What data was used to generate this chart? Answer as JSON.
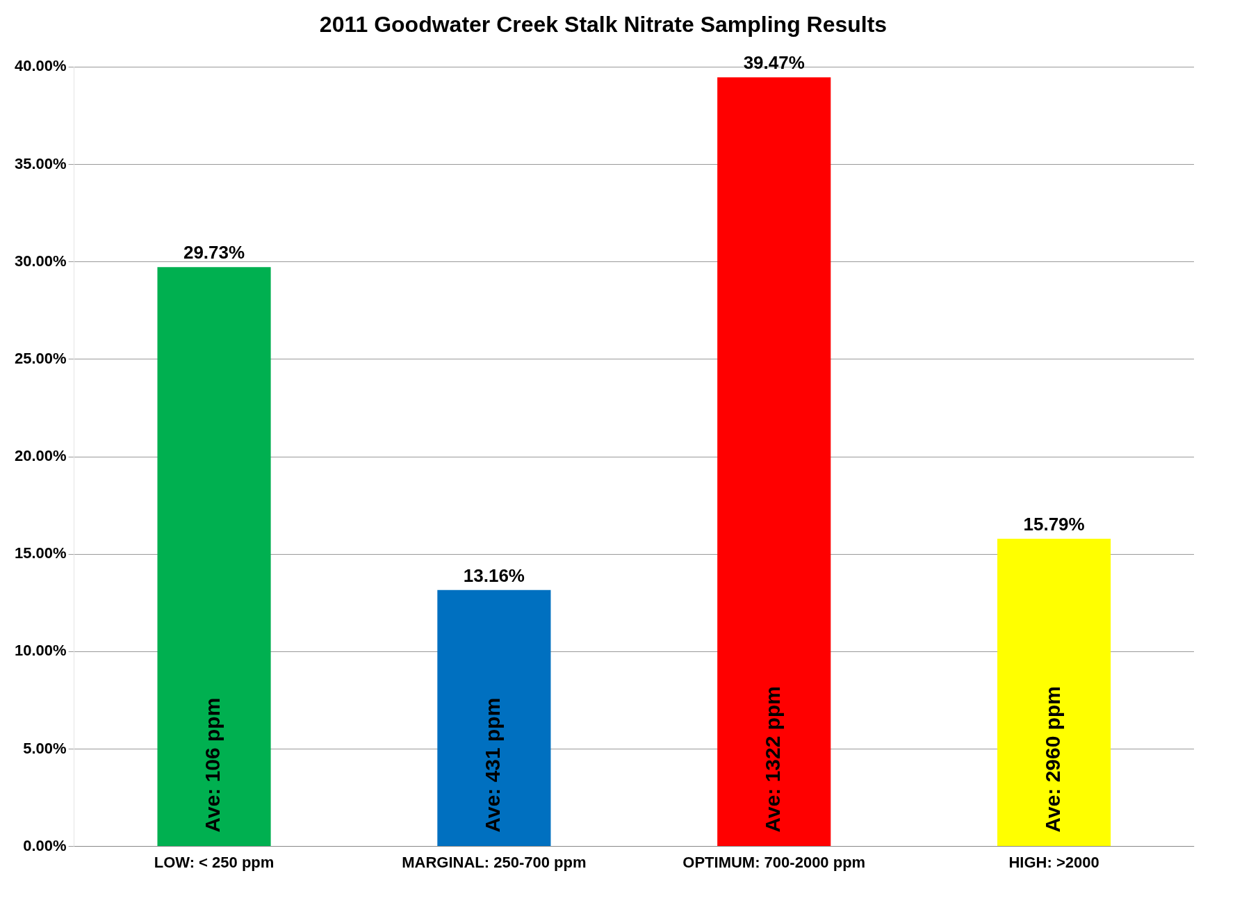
{
  "chart_data": {
    "type": "bar",
    "title": "2011 Goodwater Creek Stalk Nitrate Sampling Results",
    "categories": [
      "LOW: < 250 ppm",
      "MARGINAL: 250-700 ppm",
      "OPTIMUM: 700-2000 ppm",
      "HIGH: >2000"
    ],
    "values": [
      29.73,
      13.16,
      39.47,
      15.79
    ],
    "colors": [
      "#00b050",
      "#0070c0",
      "#ff0000",
      "#ffff00"
    ],
    "value_labels": [
      "29.73%",
      "13.16%",
      "39.47%",
      "15.79%"
    ],
    "ylim": [
      0,
      40
    ],
    "yticks": [
      {
        "value": 0,
        "label": "0.00%"
      },
      {
        "value": 5,
        "label": "5.00%"
      },
      {
        "value": 10,
        "label": "10.00%"
      },
      {
        "value": 15,
        "label": "15.00%"
      },
      {
        "value": 20,
        "label": "20.00%"
      },
      {
        "value": 25,
        "label": "25.00%"
      },
      {
        "value": 30,
        "label": "30.00%"
      },
      {
        "value": 35,
        "label": "35.00%"
      },
      {
        "value": 40,
        "label": "40.00%"
      }
    ],
    "grid": "y",
    "annotations": [
      "Ave: 106 ppm",
      "Ave: 431 ppm",
      "Ave: 1322 ppm",
      "Ave: 2960 ppm"
    ]
  }
}
